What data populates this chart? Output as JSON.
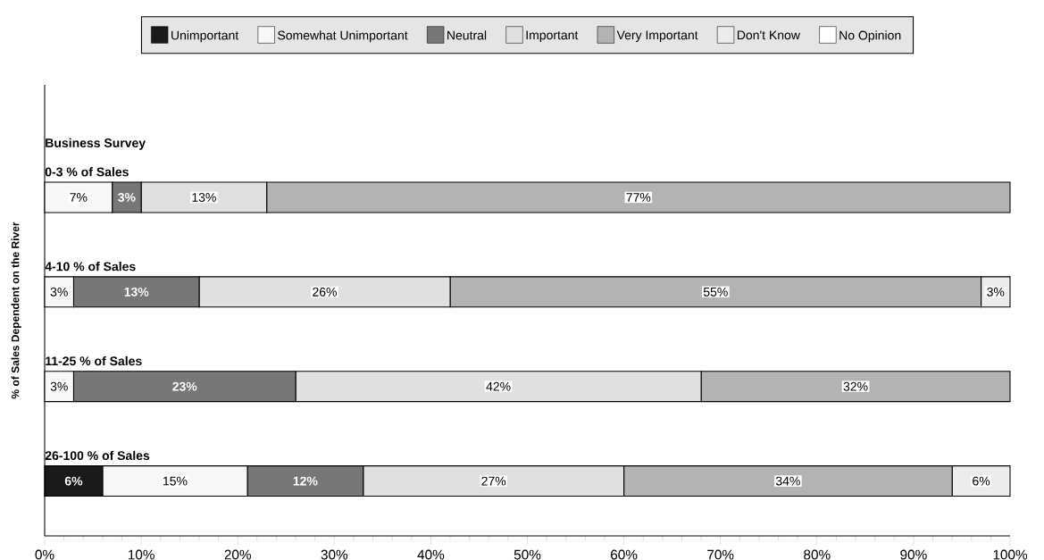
{
  "chart_data": {
    "type": "bar",
    "orientation": "horizontal",
    "stacked": true,
    "title": "Business Survey",
    "ylabel": "% of Sales Dependent on the River",
    "categories": [
      "0-3 % of Sales",
      "4-10 % of Sales",
      "11-25 % of Sales",
      "26-100 % of Sales"
    ],
    "series": [
      {
        "name": "Unimportant",
        "color": "#1a1a1a",
        "values": [
          null,
          null,
          null,
          6
        ],
        "value_labels": [
          null,
          null,
          null,
          "6%"
        ]
      },
      {
        "name": "Somewhat Unimportant",
        "color": "#f7f7f7",
        "values": [
          7,
          3,
          3,
          15
        ],
        "value_labels": [
          "7%",
          "3%",
          "3%",
          "15%"
        ]
      },
      {
        "name": "Neutral",
        "color": "#777777",
        "values": [
          3,
          13,
          23,
          12
        ],
        "value_labels": [
          "3%",
          "13%",
          "23%",
          "12%"
        ]
      },
      {
        "name": "Important",
        "color": "#e0e0e0",
        "values": [
          13,
          26,
          42,
          27
        ],
        "value_labels": [
          "13%",
          "26%",
          "42%",
          "27%"
        ]
      },
      {
        "name": "Very Important",
        "color": "#b3b3b3",
        "values": [
          77,
          55,
          32,
          34
        ],
        "value_labels": [
          "77%",
          "55%",
          "32%",
          "34%"
        ]
      },
      {
        "name": "Don't Know",
        "color": "#ececec",
        "values": [
          null,
          3,
          null,
          6
        ],
        "value_labels": [
          null,
          "3%",
          null,
          "6%"
        ]
      },
      {
        "name": "No Opinion",
        "color": "#ffffff",
        "values": [
          null,
          null,
          null,
          null
        ]
      }
    ],
    "xlim": [
      0,
      100
    ],
    "xticks": [
      {
        "value": 0,
        "label": "0%"
      },
      {
        "value": 10,
        "label": "10%"
      },
      {
        "value": 20,
        "label": "20%"
      },
      {
        "value": 30,
        "label": "30%"
      },
      {
        "value": 40,
        "label": "40%"
      },
      {
        "value": 50,
        "label": "50%"
      },
      {
        "value": 60,
        "label": "60%"
      },
      {
        "value": 70,
        "label": "70%"
      },
      {
        "value": 80,
        "label": "80%"
      },
      {
        "value": 90,
        "label": "90%"
      },
      {
        "value": 100,
        "label": "100%"
      }
    ],
    "legend": "top",
    "grid": false
  }
}
